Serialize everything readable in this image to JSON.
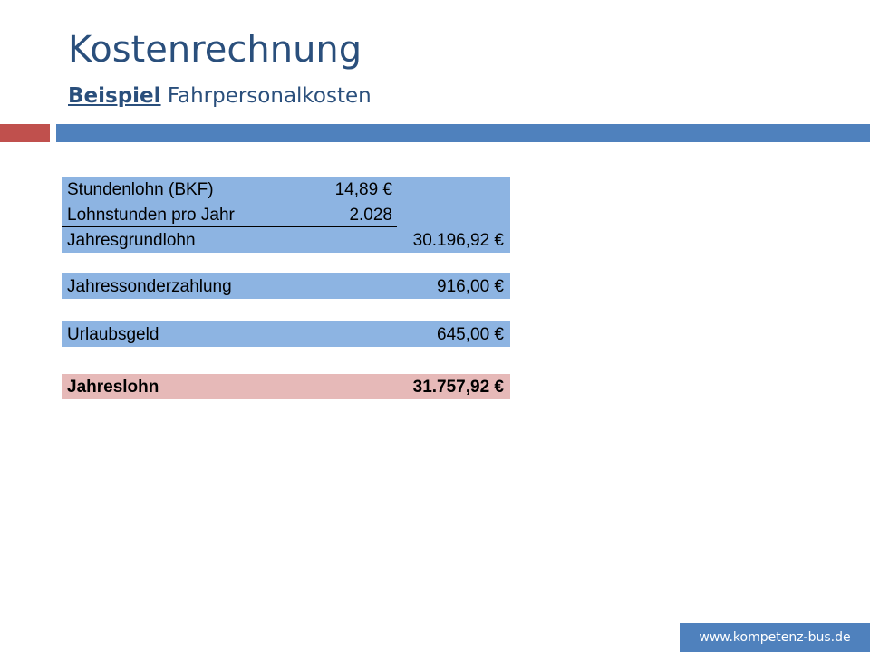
{
  "header": {
    "title": "Kostenrechnung",
    "subtitle_link": "Beispiel",
    "subtitle": "Fahrpersonalkosten"
  },
  "table": {
    "blocks": [
      {
        "rows": [
          {
            "label": "Stundenlohn (BKF)",
            "value": "14,89 €"
          },
          {
            "label": "Lohnstunden pro Jahr",
            "value": "2.028"
          },
          {
            "label": "Jahresgrundlohn",
            "total": "30.196,92 €"
          }
        ]
      },
      {
        "rows": [
          {
            "label": "Jahressonderzahlung",
            "total": "916,00 €"
          }
        ]
      },
      {
        "rows": [
          {
            "label": "Urlaubsgeld",
            "total": "645,00 €"
          }
        ]
      },
      {
        "rows": [
          {
            "label": "Jahreslohn",
            "total": "31.757,92 €"
          }
        ]
      }
    ]
  },
  "footer": {
    "url": "www.kompetenz-bus.de"
  }
}
